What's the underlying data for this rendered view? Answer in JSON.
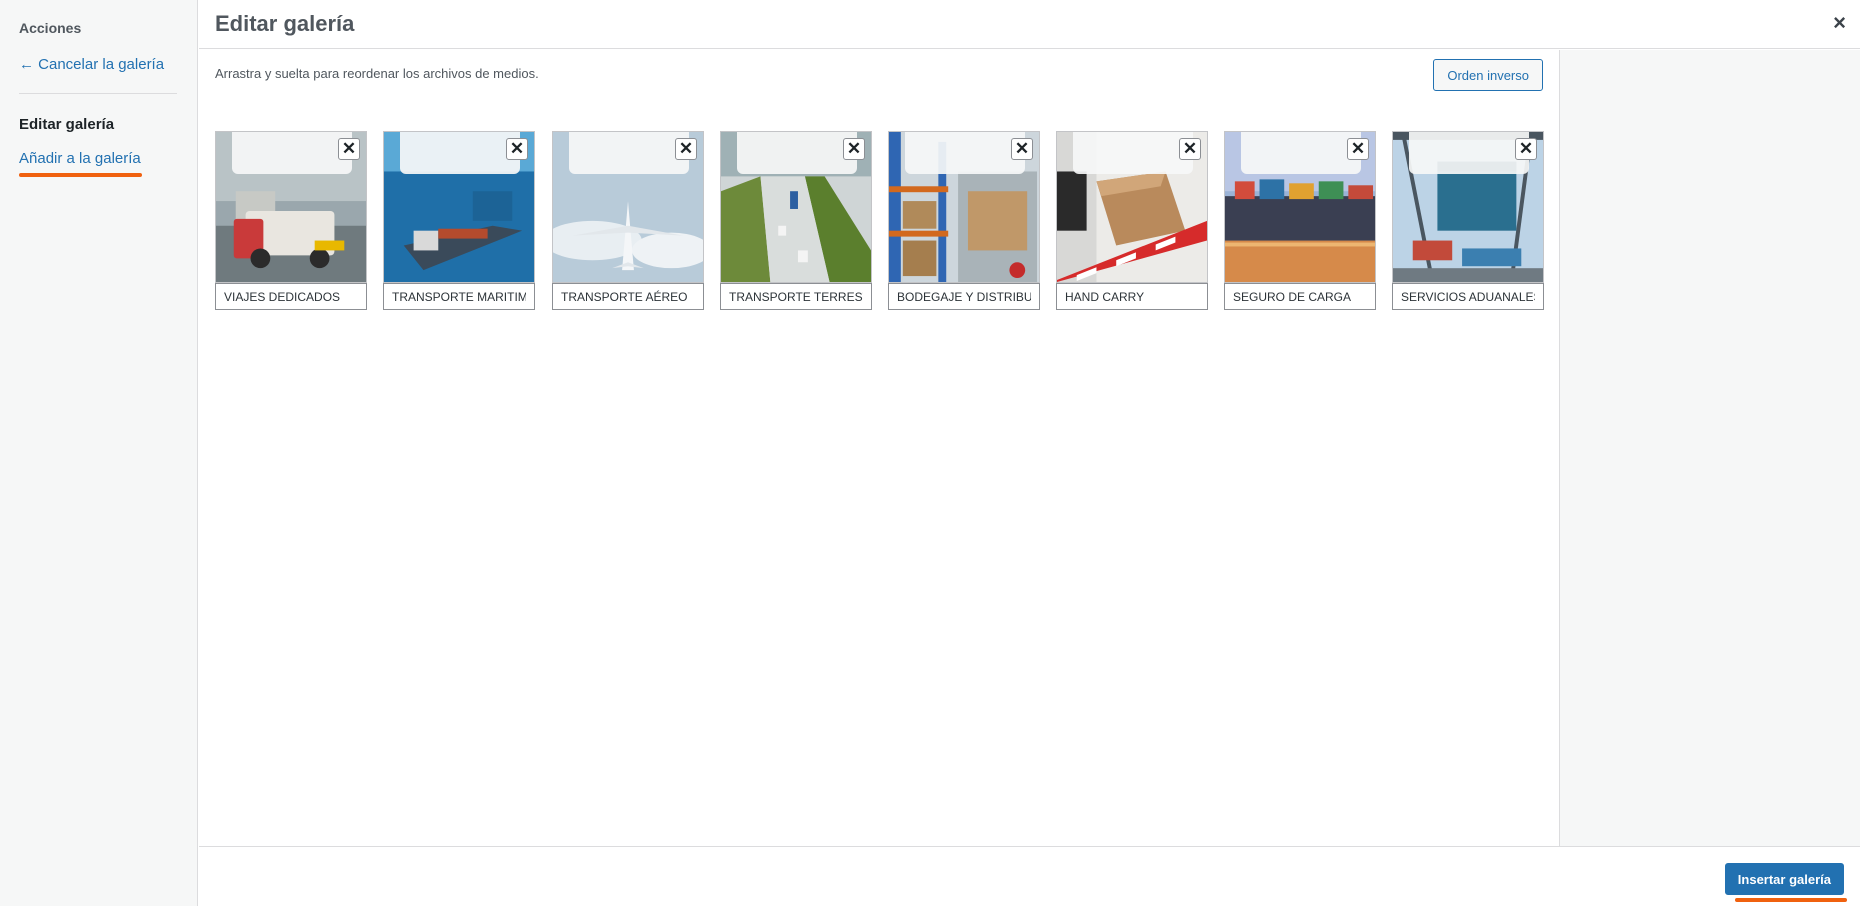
{
  "menu": {
    "heading": "Acciones",
    "cancel_label": "← Cancelar la galería",
    "edit_label": "Editar galería",
    "add_label": "Añadir a la galería"
  },
  "header": {
    "title": "Editar galería",
    "close": "×"
  },
  "content": {
    "instructions": "Arrastra y suelta para reordenar los archivos de medios.",
    "reverse_label": "Orden inverso"
  },
  "gallery": {
    "remove_glyph": "✕",
    "items": [
      {
        "caption": "VIAJES DEDICADOS"
      },
      {
        "caption": "TRANSPORTE MARITIMO"
      },
      {
        "caption": "TRANSPORTE AÉREO"
      },
      {
        "caption": "TRANSPORTE TERRESTRE"
      },
      {
        "caption": "BODEGAJE Y DISTRIBUCIÓN"
      },
      {
        "caption": "HAND CARRY"
      },
      {
        "caption": "SEGURO DE CARGA"
      },
      {
        "caption": "SERVICIOS ADUANALES"
      }
    ]
  },
  "toolbar": {
    "insert_label": "Insertar galería"
  },
  "colors": {
    "accent": "#2271b1",
    "highlight": "#f0610f"
  }
}
